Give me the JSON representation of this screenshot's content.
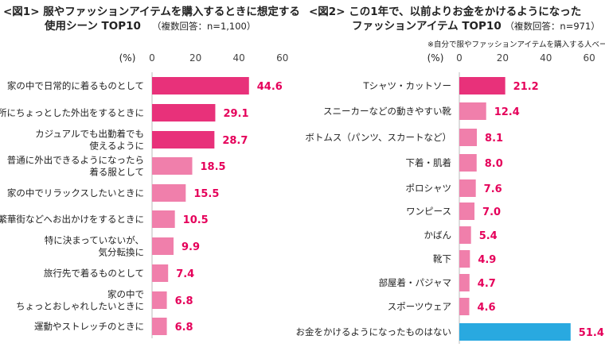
{
  "colors": {
    "primary": "#e8317a",
    "secondary": "#f07fab",
    "other": "#29a9e0",
    "value_text": "#e5005a"
  },
  "chart_data": [
    {
      "type": "bar",
      "orientation": "horizontal",
      "title": "<図1> 服やファッションアイテムを購入するときに想定する",
      "title_line2": "使用シーン TOP10",
      "subtitle": "（複数回答：n=1,100）",
      "unit_label": "(%)",
      "xlim": [
        0,
        60
      ],
      "ticks": [
        "0",
        "20",
        "40",
        "60"
      ],
      "categories": [
        [
          "家の中で日常的に着るものとして"
        ],
        [
          "近所にちょっとした外出をするときに"
        ],
        [
          "カジュアルでも出勤着でも",
          "使えるように"
        ],
        [
          "普通に外出できるようになったら",
          "着る服として"
        ],
        [
          "家の中でリラックスしたいときに"
        ],
        [
          "繁華街などへお出かけをするときに"
        ],
        [
          "特に決まっていないが、",
          "気分転換に"
        ],
        [
          "旅行先で着るものとして"
        ],
        [
          "家の中で",
          "ちょっとおしゃれしたいときに"
        ],
        [
          "運動やストレッチのときに"
        ]
      ],
      "values": [
        44.6,
        29.1,
        28.7,
        18.5,
        15.5,
        10.5,
        9.9,
        7.4,
        6.8,
        6.8
      ],
      "value_labels": [
        "44.6",
        "29.1",
        "28.7",
        "18.5",
        "15.5",
        "10.5",
        "9.9",
        "7.4",
        "6.8",
        "6.8"
      ],
      "highlight": [
        "primary",
        "primary",
        "primary",
        "secondary",
        "secondary",
        "secondary",
        "secondary",
        "secondary",
        "secondary",
        "secondary"
      ]
    },
    {
      "type": "bar",
      "orientation": "horizontal",
      "title": "<図2> この1年で、以前よりお金をかけるようになった",
      "title_line2": "ファッションアイテム TOP10",
      "subtitle": "（複数回答：n=971）",
      "note": "※自分で服やファッションアイテムを購入する人ベース",
      "unit_label": "(%)",
      "xlim": [
        0,
        60
      ],
      "ticks": [
        "0",
        "20",
        "40",
        "60"
      ],
      "categories": [
        [
          "Tシャツ・カットソー"
        ],
        [
          "スニーカーなどの動きやすい靴"
        ],
        [
          "ボトムス（パンツ、スカートなど）"
        ],
        [
          "下着・肌着"
        ],
        [
          "ポロシャツ"
        ],
        [
          "ワンピース"
        ],
        [
          "かばん"
        ],
        [
          "靴下"
        ],
        [
          "部屋着・パジャマ"
        ],
        [
          "スポーツウェア"
        ],
        [
          "お金をかけるようになったものはない"
        ]
      ],
      "values": [
        21.2,
        12.4,
        8.1,
        8.0,
        7.6,
        7.0,
        5.4,
        4.9,
        4.7,
        4.6,
        51.4
      ],
      "value_labels": [
        "21.2",
        "12.4",
        "8.1",
        "8.0",
        "7.6",
        "7.0",
        "5.4",
        "4.9",
        "4.7",
        "4.6",
        "51.4"
      ],
      "highlight": [
        "primary",
        "secondary",
        "secondary",
        "secondary",
        "secondary",
        "secondary",
        "secondary",
        "secondary",
        "secondary",
        "secondary",
        "other"
      ]
    }
  ]
}
